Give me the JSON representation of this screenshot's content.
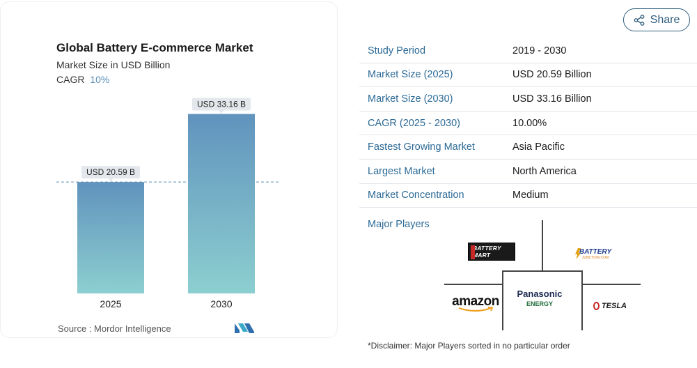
{
  "chart_data": {
    "type": "bar",
    "title": "Global Battery E-commerce Market",
    "subtitle": "Market Size in USD Billion",
    "cagr_label": "CAGR",
    "cagr_value": "10%",
    "categories": [
      "2025",
      "2030"
    ],
    "values": [
      20.59,
      33.16
    ],
    "data_labels": [
      "USD 20.59 B",
      "USD 33.16 B"
    ],
    "ylim": [
      0,
      34
    ],
    "reference_line_value": 20.59,
    "colors": {
      "bar_top": "#6193bd",
      "bar_bottom": "#8ccfd0",
      "label_bg": "#e4e8ec",
      "reference_line": "#5b8db5"
    },
    "source": "Source :  Mordor Intelligence"
  },
  "share": {
    "label": "Share",
    "icon": "share-icon"
  },
  "info": {
    "rows": [
      {
        "label": "Study Period",
        "value": "2019 - 2030"
      },
      {
        "label": "Market Size (2025)",
        "value": "USD 20.59 Billion"
      },
      {
        "label": "Market Size (2030)",
        "value": "USD 33.16 Billion"
      },
      {
        "label": "CAGR (2025 - 2030)",
        "value": "10.00%"
      },
      {
        "label": "Fastest Growing Market",
        "value": "Asia Pacific"
      },
      {
        "label": "Largest Market",
        "value": "North America"
      },
      {
        "label": "Market Concentration",
        "value": "Medium"
      }
    ]
  },
  "players": {
    "label": "Major Players",
    "logos": {
      "battery_mart": "BATTERY MART",
      "battery_junction": "BATTERY",
      "battery_junction_sub": "JUNCTION.COM",
      "panasonic": "Panasonic",
      "panasonic_sub": "ENERGY",
      "amazon": "amazon",
      "tesla": "TESLA"
    }
  },
  "disclaimer": "*Disclaimer: Major Players sorted in no particular order"
}
